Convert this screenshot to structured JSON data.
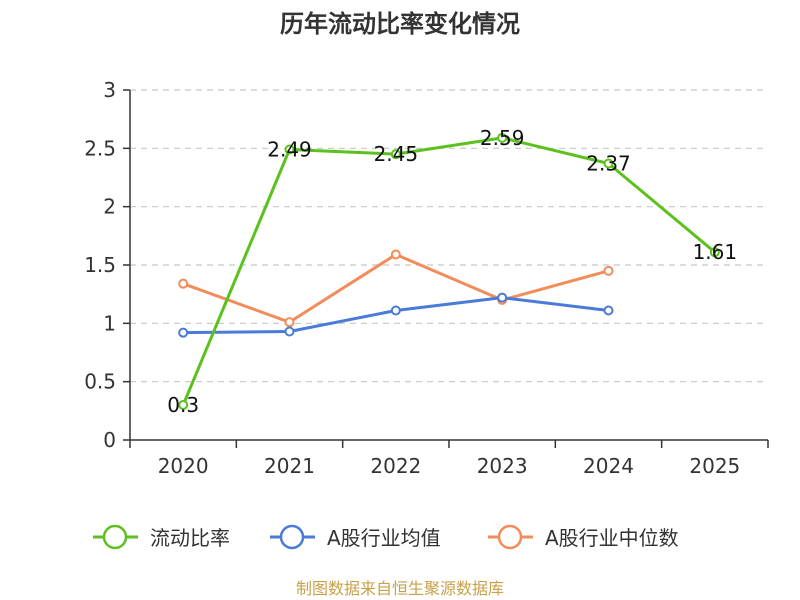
{
  "chart_data": {
    "type": "line",
    "title": "历年流动比率变化情况",
    "categories": [
      "2020",
      "2021",
      "2022",
      "2023",
      "2024",
      "2025"
    ],
    "ylim": [
      0,
      3
    ],
    "yticks": [
      "0",
      "0.5",
      "1",
      "1.5",
      "2",
      "2.5",
      "3"
    ],
    "yticks_values": [
      0,
      0.5,
      1,
      1.5,
      2,
      2.5,
      3
    ],
    "grid": true,
    "legend_position": "bottom",
    "series": [
      {
        "name": "流动比率",
        "color": "#5cc11f",
        "values": [
          0.3,
          2.49,
          2.45,
          2.59,
          2.37,
          1.61
        ],
        "labels": [
          "0.3",
          "2.49",
          "2.45",
          "2.59",
          "2.37",
          "1.61"
        ]
      },
      {
        "name": "A股行业均值",
        "color": "#4a7bd8",
        "values": [
          0.92,
          0.93,
          1.11,
          1.22,
          1.11,
          null
        ]
      },
      {
        "name": "A股行业中位数",
        "color": "#f28c5a",
        "values": [
          1.34,
          1.01,
          1.59,
          1.2,
          1.45,
          null
        ]
      }
    ],
    "source": "制图数据来自恒生聚源数据库"
  }
}
